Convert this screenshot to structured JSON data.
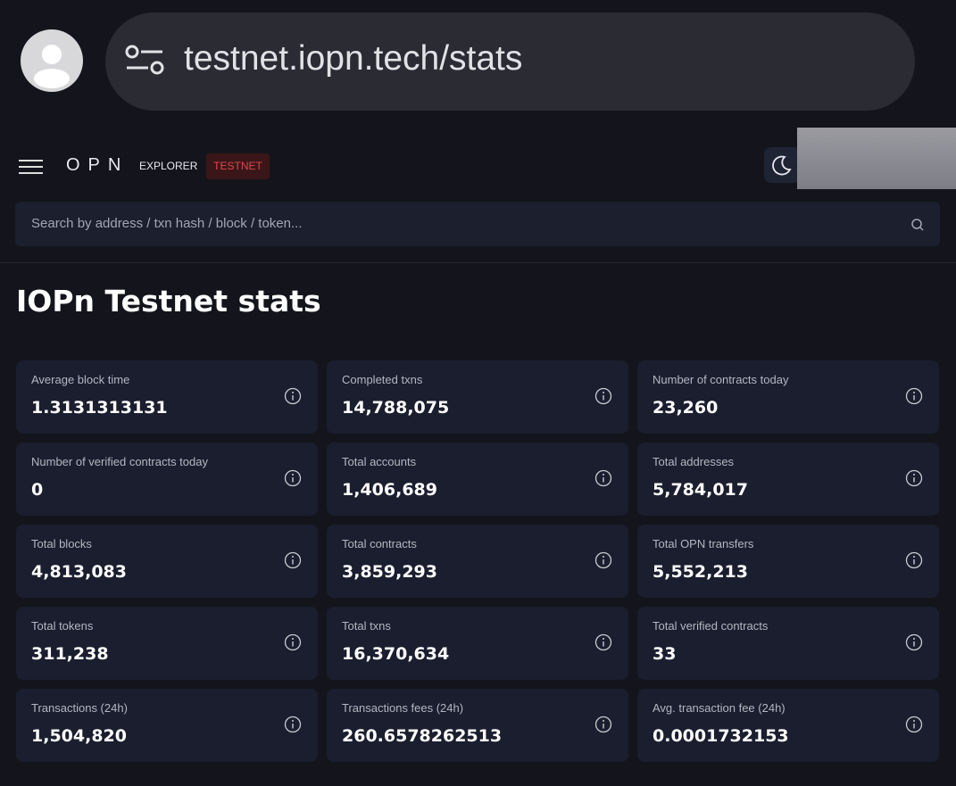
{
  "browser": {
    "url": "testnet.iopn.tech/stats"
  },
  "nav": {
    "logo": "OPN",
    "section": "EXPLORER",
    "network": "TESTNET"
  },
  "search": {
    "placeholder": "Search by address / txn hash / block / token..."
  },
  "page": {
    "title": "IOPn Testnet stats"
  },
  "stats": [
    {
      "label": "Average block time",
      "value": "1.3131313131"
    },
    {
      "label": "Completed txns",
      "value": "14,788,075"
    },
    {
      "label": "Number of contracts today",
      "value": "23,260"
    },
    {
      "label": "Number of verified contracts today",
      "value": "0"
    },
    {
      "label": "Total accounts",
      "value": "1,406,689"
    },
    {
      "label": "Total addresses",
      "value": "5,784,017"
    },
    {
      "label": "Total blocks",
      "value": "4,813,083"
    },
    {
      "label": "Total contracts",
      "value": "3,859,293"
    },
    {
      "label": "Total OPN transfers",
      "value": "5,552,213"
    },
    {
      "label": "Total tokens",
      "value": "311,238"
    },
    {
      "label": "Total txns",
      "value": "16,370,634"
    },
    {
      "label": "Total verified contracts",
      "value": "33"
    },
    {
      "label": "Transactions (24h)",
      "value": "1,504,820"
    },
    {
      "label": "Transactions fees (24h)",
      "value": "260.6578262513"
    },
    {
      "label": "Avg. transaction fee (24h)",
      "value": "0.0001732153"
    }
  ]
}
